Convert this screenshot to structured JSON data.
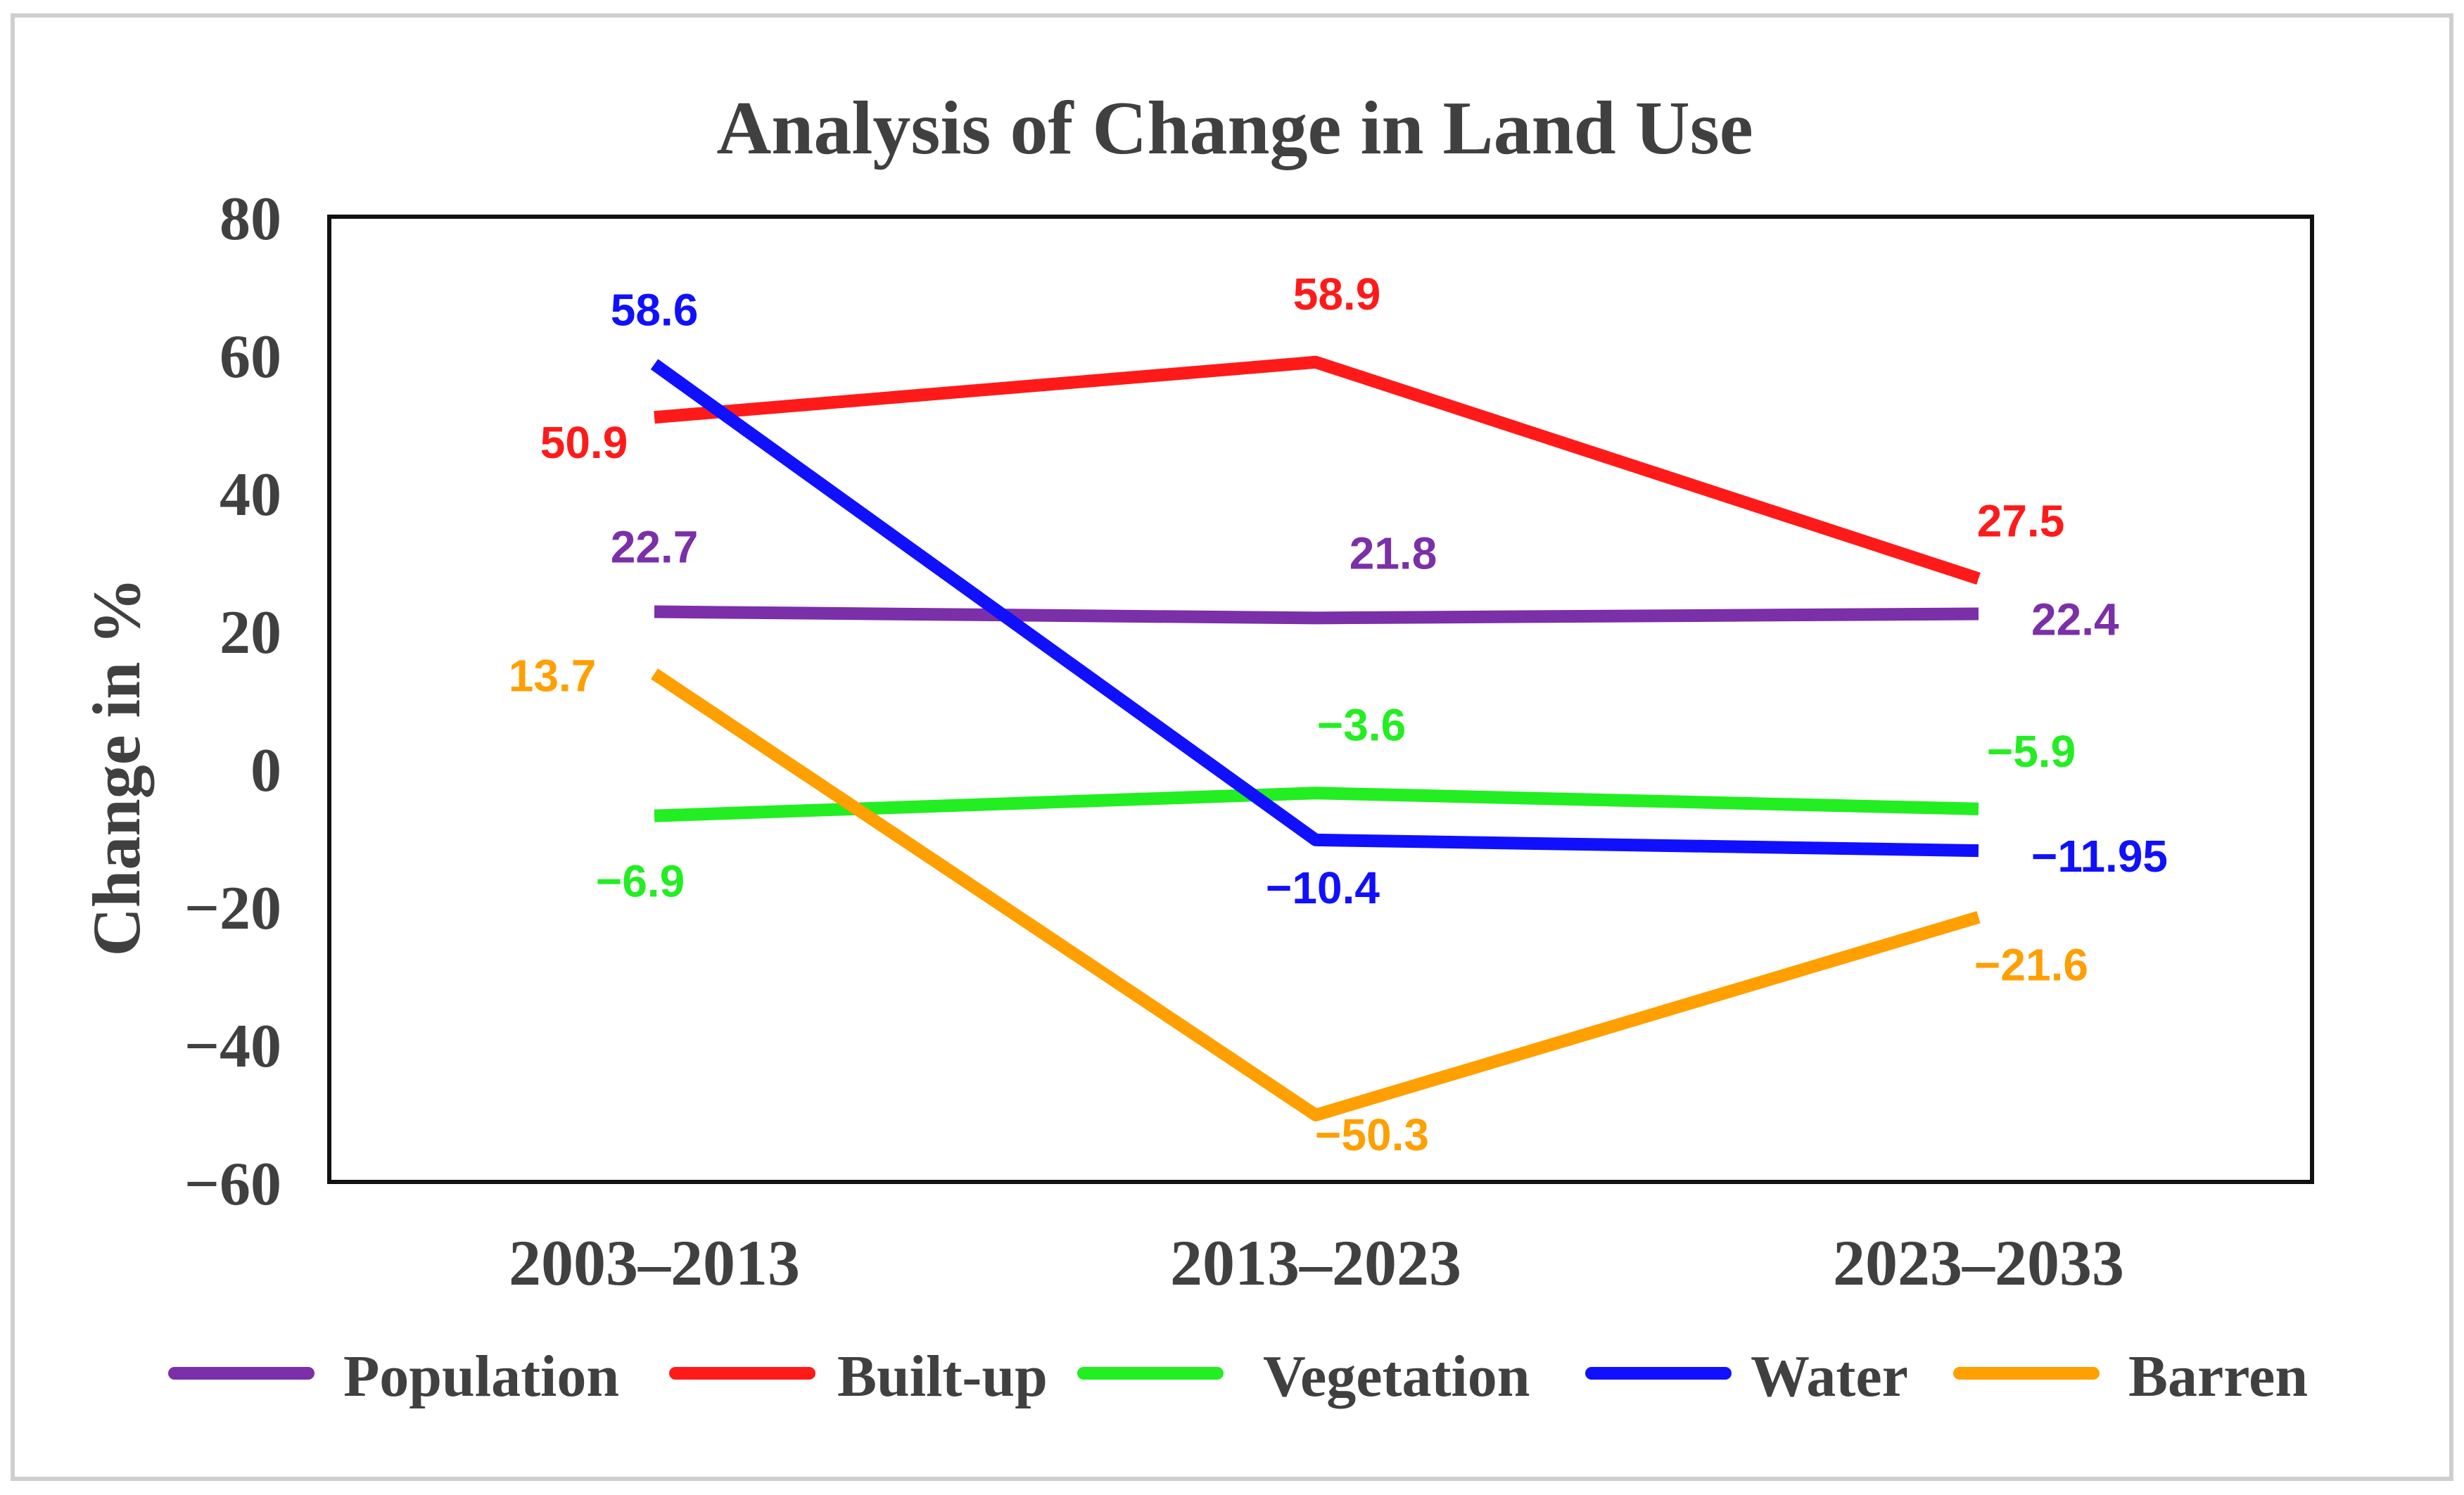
{
  "chart_data": {
    "type": "line",
    "title": "Analysis of Change in Land Use",
    "xlabel": "",
    "ylabel": "Change in %",
    "categories": [
      "2003–2013",
      "2013–2023",
      "2023–2033"
    ],
    "ylim": [
      -60,
      80
    ],
    "yticks": [
      80,
      60,
      40,
      20,
      0,
      -20,
      -40,
      -60
    ],
    "ytick_labels": [
      "80",
      "60",
      "40",
      "20",
      "0",
      "−20",
      "−40",
      "−60"
    ],
    "grid": false,
    "legend_position": "bottom",
    "series": [
      {
        "name": "Population",
        "color": "#7B2FA8",
        "values": [
          22.7,
          21.8,
          22.4
        ],
        "labels": [
          "22.7",
          "21.8",
          "22.4"
        ]
      },
      {
        "name": "Built-up",
        "color": "#FF1A1A",
        "values": [
          50.9,
          58.9,
          27.5
        ],
        "labels": [
          "50.9",
          "58.9",
          "27.5"
        ]
      },
      {
        "name": "Vegetation",
        "color": "#22EE22",
        "values": [
          -6.9,
          -3.6,
          -5.9
        ],
        "labels": [
          "−6.9",
          "−3.6",
          "−5.9"
        ]
      },
      {
        "name": "Water",
        "color": "#1010FF",
        "values": [
          58.6,
          -10.4,
          -11.95
        ],
        "labels": [
          "58.6",
          "−10.4",
          "−11.95"
        ]
      },
      {
        "name": "Barren",
        "color": "#FF9F00",
        "values": [
          13.7,
          -50.3,
          -21.6
        ],
        "labels": [
          "13.7",
          "−50.3",
          "−21.6"
        ]
      }
    ]
  }
}
